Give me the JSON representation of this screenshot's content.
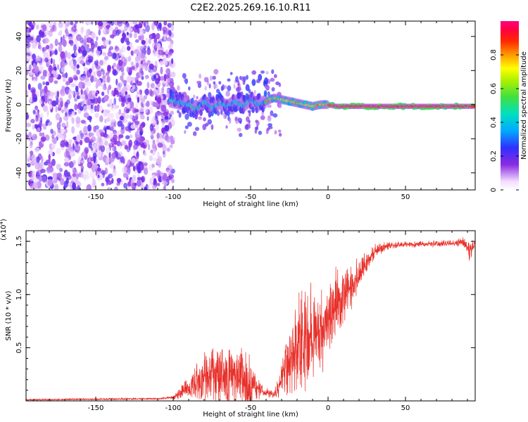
{
  "title": "C2E2.2025.269.16.10.R11",
  "chart_data": [
    {
      "type": "heatmap",
      "name": "spectrogram",
      "xlabel": "Height of straight line (km)",
      "ylabel": "Frequency (Hz)",
      "xlim": [
        -195,
        95
      ],
      "ylim": [
        -50,
        49
      ],
      "xticks": [
        -150,
        -100,
        -50,
        0,
        50
      ],
      "yticks": [
        -40,
        -20,
        0,
        20,
        40
      ],
      "colorbar": {
        "label": "Normalized spectral amplitude",
        "range": [
          0,
          1
        ],
        "ticks": [
          0,
          0.2,
          0.4,
          0.6,
          0.8
        ]
      },
      "ridge": [
        {
          "x": -100,
          "y": 2
        },
        {
          "x": -95,
          "y": 1
        },
        {
          "x": -90,
          "y": 0
        },
        {
          "x": -85,
          "y": -3
        },
        {
          "x": -80,
          "y": 2
        },
        {
          "x": -75,
          "y": -2
        },
        {
          "x": -70,
          "y": 1
        },
        {
          "x": -65,
          "y": -1
        },
        {
          "x": -60,
          "y": 2
        },
        {
          "x": -55,
          "y": -1
        },
        {
          "x": -50,
          "y": 3
        },
        {
          "x": -45,
          "y": 0
        },
        {
          "x": -40,
          "y": 2
        },
        {
          "x": -35,
          "y": 4
        },
        {
          "x": -30,
          "y": 3
        },
        {
          "x": -25,
          "y": 2
        },
        {
          "x": -20,
          "y": 1
        },
        {
          "x": -15,
          "y": 0
        },
        {
          "x": -10,
          "y": -1
        },
        {
          "x": -5,
          "y": 0
        },
        {
          "x": 0,
          "y": 0
        },
        {
          "x": 5,
          "y": -1
        },
        {
          "x": 10,
          "y": -1
        },
        {
          "x": 20,
          "y": -1
        },
        {
          "x": 30,
          "y": -1
        },
        {
          "x": 40,
          "y": -1
        },
        {
          "x": 50,
          "y": -1
        },
        {
          "x": 60,
          "y": -1
        },
        {
          "x": 70,
          "y": -1
        },
        {
          "x": 80,
          "y": -1
        },
        {
          "x": 90,
          "y": -1
        }
      ]
    },
    {
      "type": "line",
      "name": "snr",
      "xlabel": "Height of straight line (km)",
      "ylabel": "SNR (10 * v/v)",
      "multiplier": "(x10",
      "multiplier_exp": "4",
      "multiplier_close": ")",
      "xlim": [
        -195,
        95
      ],
      "ylim": [
        0,
        1.6
      ],
      "xticks": [
        -150,
        -100,
        -50,
        0,
        50
      ],
      "yticks": [
        0.5,
        1.0,
        1.5
      ],
      "ytick_labels": [
        "0.5",
        "1.0",
        "1.5"
      ],
      "color": "#e8302a",
      "envelope": [
        {
          "x": -195,
          "base": 0.01,
          "amp": 0.01
        },
        {
          "x": -110,
          "base": 0.02,
          "amp": 0.01
        },
        {
          "x": -100,
          "base": 0.03,
          "amp": 0.02
        },
        {
          "x": -95,
          "base": 0.07,
          "amp": 0.08
        },
        {
          "x": -90,
          "base": 0.12,
          "amp": 0.1
        },
        {
          "x": -85,
          "base": 0.17,
          "amp": 0.2
        },
        {
          "x": -80,
          "base": 0.2,
          "amp": 0.28
        },
        {
          "x": -75,
          "base": 0.22,
          "amp": 0.3
        },
        {
          "x": -70,
          "base": 0.22,
          "amp": 0.32
        },
        {
          "x": -65,
          "base": 0.2,
          "amp": 0.3
        },
        {
          "x": -60,
          "base": 0.2,
          "amp": 0.3
        },
        {
          "x": -55,
          "base": 0.2,
          "amp": 0.3
        },
        {
          "x": -52,
          "base": 0.18,
          "amp": 0.55
        },
        {
          "x": -48,
          "base": 0.12,
          "amp": 0.15
        },
        {
          "x": -42,
          "base": 0.08,
          "amp": 0.06
        },
        {
          "x": -36,
          "base": 0.06,
          "amp": 0.05
        },
        {
          "x": -32,
          "base": 0.1,
          "amp": 0.1
        },
        {
          "x": -28,
          "base": 0.3,
          "amp": 0.3
        },
        {
          "x": -22,
          "base": 0.45,
          "amp": 0.55
        },
        {
          "x": -15,
          "base": 0.55,
          "amp": 0.55
        },
        {
          "x": -8,
          "base": 0.6,
          "amp": 0.5
        },
        {
          "x": 0,
          "base": 0.75,
          "amp": 0.45
        },
        {
          "x": 8,
          "base": 0.9,
          "amp": 0.35
        },
        {
          "x": 15,
          "base": 1.05,
          "amp": 0.25
        },
        {
          "x": 22,
          "base": 1.25,
          "amp": 0.15
        },
        {
          "x": 30,
          "base": 1.4,
          "amp": 0.08
        },
        {
          "x": 40,
          "base": 1.46,
          "amp": 0.04
        },
        {
          "x": 60,
          "base": 1.47,
          "amp": 0.03
        },
        {
          "x": 80,
          "base": 1.48,
          "amp": 0.04
        },
        {
          "x": 88,
          "base": 1.49,
          "amp": 0.06
        },
        {
          "x": 91,
          "base": 1.4,
          "amp": 0.15
        },
        {
          "x": 95,
          "base": 1.48,
          "amp": 0.05
        }
      ]
    }
  ]
}
